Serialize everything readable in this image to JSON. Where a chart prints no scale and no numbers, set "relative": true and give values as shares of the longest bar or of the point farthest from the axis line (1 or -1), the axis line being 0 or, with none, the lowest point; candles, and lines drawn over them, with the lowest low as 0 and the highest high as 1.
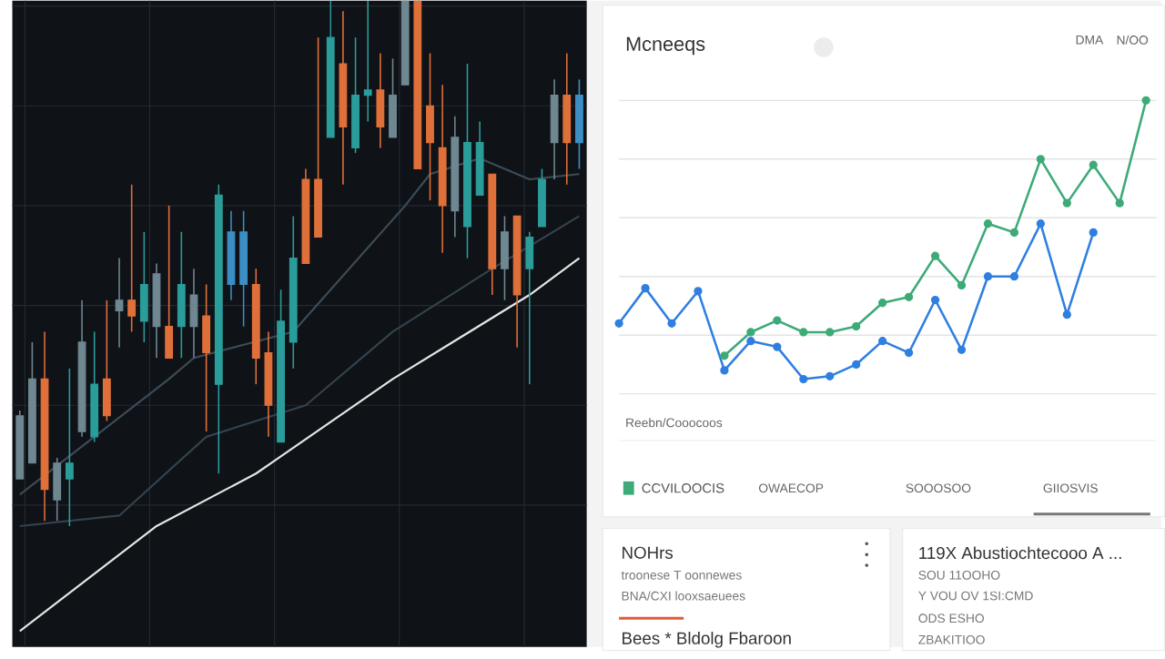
{
  "chart_data": [
    {
      "type": "candlestick",
      "relative": true,
      "grid": true,
      "categories": [
        null,
        null,
        null,
        null,
        null,
        null,
        null,
        null,
        null,
        null,
        null,
        null,
        null,
        null,
        null,
        null,
        null,
        null,
        null,
        null,
        null,
        null,
        null,
        null,
        null,
        null,
        null,
        null,
        null,
        null,
        null,
        null,
        null,
        null,
        null,
        null,
        null,
        null,
        null,
        null,
        null,
        null,
        null,
        null,
        null,
        null
      ],
      "ohlc": [
        [
          0.09,
          0.22,
          0.09,
          0.21
        ],
        [
          0.12,
          0.35,
          0.12,
          0.28
        ],
        [
          0.28,
          0.37,
          0.01,
          0.07
        ],
        [
          0.05,
          0.13,
          0.01,
          0.12
        ],
        [
          0.09,
          0.3,
          0,
          0.12
        ],
        [
          0.18,
          0.43,
          0.17,
          0.35
        ],
        [
          0.17,
          0.37,
          0.16,
          0.27
        ],
        [
          0.28,
          0.43,
          0.2,
          0.21
        ],
        [
          0.41,
          0.51,
          0.34,
          0.43
        ],
        [
          0.43,
          0.65,
          0.37,
          0.4
        ],
        [
          0.39,
          0.56,
          0.35,
          0.46
        ],
        [
          0.38,
          0.5,
          0.32,
          0.48
        ],
        [
          0.38,
          0.61,
          0.32,
          0.32
        ],
        [
          0.38,
          0.56,
          0.32,
          0.46
        ],
        [
          0.38,
          0.49,
          0.32,
          0.44
        ],
        [
          0.4,
          0.46,
          0.18,
          0.33
        ],
        [
          0.27,
          0.65,
          0.1,
          0.63
        ],
        [
          0.46,
          0.6,
          0.43,
          0.56
        ],
        [
          0.46,
          0.6,
          0.38,
          0.56
        ],
        [
          0.46,
          0.49,
          0.27,
          0.32
        ],
        [
          0.33,
          0.37,
          0.17,
          0.23
        ],
        [
          0.16,
          0.45,
          0.16,
          0.39
        ],
        [
          0.35,
          0.59,
          0.3,
          0.51
        ],
        [
          0.66,
          0.68,
          0.5,
          0.5
        ],
        [
          0.66,
          0.93,
          0.55,
          0.55
        ],
        [
          0.74,
          1.0,
          0.74,
          0.93
        ],
        [
          0.88,
          0.98,
          0.65,
          0.76
        ],
        [
          0.72,
          0.93,
          0.71,
          0.82
        ],
        [
          0.82,
          1.0,
          0.77,
          0.83
        ],
        [
          0.83,
          0.9,
          0.72,
          0.76
        ],
        [
          0.74,
          0.89,
          0.74,
          0.82
        ],
        [
          0.84,
          1.0,
          0.84,
          1.0
        ],
        [
          1.0,
          1.0,
          0.68,
          0.68
        ],
        [
          0.8,
          0.9,
          0.62,
          0.73
        ],
        [
          0.72,
          0.84,
          0.52,
          0.61
        ],
        [
          0.6,
          0.78,
          0.55,
          0.74
        ],
        [
          0.57,
          0.88,
          0.51,
          0.73
        ],
        [
          0.63,
          0.77,
          0.63,
          0.73
        ],
        [
          0.67,
          0.67,
          0.44,
          0.49
        ],
        [
          0.49,
          0.59,
          0.43,
          0.56
        ],
        [
          0.59,
          0.59,
          0.34,
          0.44
        ],
        [
          0.49,
          0.56,
          0.27,
          0.55
        ],
        [
          0.57,
          0.68,
          0.57,
          0.66
        ],
        [
          0.73,
          0.85,
          0.66,
          0.82
        ],
        [
          0.82,
          0.9,
          0.65,
          0.73
        ],
        [
          0.73,
          0.85,
          0.68,
          0.82
        ]
      ],
      "colors": [
        "#6f8791",
        "#6f8791",
        "#e0703a",
        "#6f8791",
        "#2a9d9a",
        "#6f8791",
        "#2a9d9a",
        "#e0703a",
        "#6f8791",
        "#e0703a",
        "#2a9d9a",
        "#6f8791",
        "#e0703a",
        "#2a9d9a",
        "#6f8791",
        "#e0703a",
        "#2a9d9a",
        "#3b8fc4",
        "#3b8fc4",
        "#e0703a",
        "#e0703a",
        "#2a9d9a",
        "#2a9d9a",
        "#e0703a",
        "#e0703a",
        "#2a9d9a",
        "#e0703a",
        "#2a9d9a",
        "#2a9d9a",
        "#e0703a",
        "#6f8791",
        "#6f8791",
        "#e0703a",
        "#e0703a",
        "#e0703a",
        "#6f8791",
        "#2a9d9a",
        "#2a9d9a",
        "#e0703a",
        "#6f8791",
        "#e0703a",
        "#2a9d9a",
        "#2a9d9a",
        "#6f8791",
        "#e0703a",
        "#3b8fc4"
      ],
      "series": [
        {
          "type": "line",
          "color": "#3c4c58",
          "values": [
            0.06,
            null,
            null,
            null,
            null,
            null,
            null,
            null,
            null,
            null,
            null,
            null,
            0.28,
            null,
            0.32,
            null,
            null,
            null,
            null,
            null,
            null,
            null,
            0.37,
            null,
            null,
            null,
            null,
            null,
            null,
            null,
            null,
            0.61,
            null,
            0.67,
            null,
            null,
            null,
            0.7,
            null,
            null,
            null,
            0.66,
            null,
            null,
            null,
            0.67
          ]
        },
        {
          "type": "line",
          "color": "#33434f",
          "values": [
            0,
            null,
            null,
            null,
            null,
            null,
            null,
            null,
            0.02,
            null,
            null,
            null,
            null,
            null,
            null,
            0.17,
            null,
            null,
            null,
            null,
            null,
            null,
            null,
            0.23,
            null,
            null,
            null,
            null,
            null,
            null,
            0.37,
            null,
            null,
            null,
            null,
            null,
            null,
            null,
            0.49,
            null,
            null,
            null,
            null,
            null,
            null,
            0.59
          ]
        },
        {
          "type": "line",
          "color": "#e6e6e6",
          "values": [
            -0.2,
            null,
            null,
            null,
            null,
            null,
            null,
            null,
            null,
            null,
            null,
            0,
            null,
            null,
            null,
            null,
            null,
            null,
            null,
            0.1,
            null,
            null,
            null,
            null,
            null,
            null,
            null,
            null,
            null,
            null,
            0.28,
            null,
            null,
            null,
            null,
            null,
            null,
            null,
            null,
            null,
            null,
            0.44,
            null,
            null,
            null,
            0.51
          ]
        }
      ]
    },
    {
      "type": "line",
      "relative": true,
      "title": "Mcneeqs",
      "grid": "y",
      "marker": "circle",
      "legend": "bottom",
      "categories": [
        null,
        null,
        null,
        null,
        null,
        null,
        null,
        null,
        null,
        null,
        null,
        null,
        null,
        null,
        null,
        null,
        null,
        null,
        null,
        null,
        null
      ],
      "series": [
        {
          "color": "#2f7fe0",
          "values": [
            0.24,
            0.36,
            0.24,
            0.35,
            0.08,
            0.18,
            0.16,
            0.05,
            0.06,
            0.1,
            0.18,
            0.14,
            0.32,
            0.15,
            0.4,
            0.4,
            0.58,
            0.27,
            0.55,
            null,
            null
          ]
        },
        {
          "name": "CCVILOOCIS",
          "color": "#3daa78",
          "values": [
            null,
            null,
            null,
            null,
            0.13,
            0.21,
            0.25,
            0.21,
            0.21,
            0.23,
            0.31,
            0.33,
            0.47,
            0.37,
            0.58,
            0.55,
            0.8,
            0.65,
            0.78,
            0.65,
            1.0
          ]
        }
      ],
      "annotations": [
        "DMA",
        "N/OO",
        "Reebn/Cooocoos",
        "OWAECOP",
        "SOOOSOO",
        "GIIOSVIS"
      ]
    },
    {
      "type": "other",
      "annotations": [
        "NOHrs",
        "troonese T oonnewes",
        "BNA/CXI looxsaeuees",
        "Bees * Bldolg Fbaroon",
        "119X Abustiochtecooo A ...",
        "SOU 11OOHO",
        "Y VOU OV 1SI:CMD",
        "ODS ESHO",
        "ZBAKITIOO"
      ]
    }
  ]
}
